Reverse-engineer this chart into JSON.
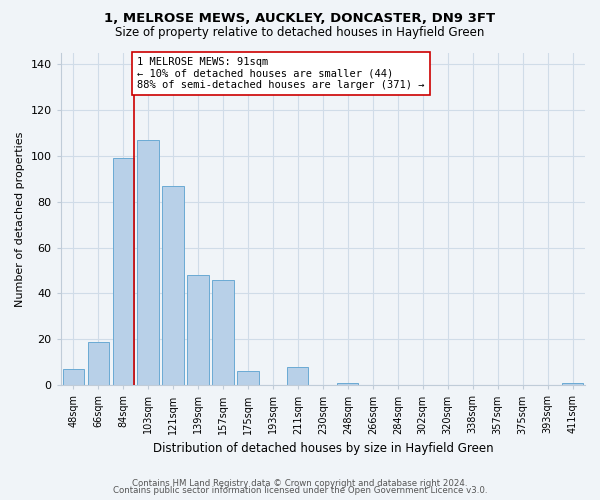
{
  "title": "1, MELROSE MEWS, AUCKLEY, DONCASTER, DN9 3FT",
  "subtitle": "Size of property relative to detached houses in Hayfield Green",
  "xlabel": "Distribution of detached houses by size in Hayfield Green",
  "ylabel": "Number of detached properties",
  "bar_labels": [
    "48sqm",
    "66sqm",
    "84sqm",
    "103sqm",
    "121sqm",
    "139sqm",
    "157sqm",
    "175sqm",
    "193sqm",
    "211sqm",
    "230sqm",
    "248sqm",
    "266sqm",
    "284sqm",
    "302sqm",
    "320sqm",
    "338sqm",
    "357sqm",
    "375sqm",
    "393sqm",
    "411sqm"
  ],
  "bar_values": [
    7,
    19,
    99,
    107,
    87,
    48,
    46,
    6,
    0,
    8,
    0,
    1,
    0,
    0,
    0,
    0,
    0,
    0,
    0,
    0,
    1
  ],
  "bar_color": "#b8d0e8",
  "bar_edge_color": "#6aaad4",
  "vline_color": "#cc0000",
  "annotation_text": "1 MELROSE MEWS: 91sqm\n← 10% of detached houses are smaller (44)\n88% of semi-detached houses are larger (371) →",
  "annotation_box_edge": "#cc0000",
  "ylim": [
    0,
    145
  ],
  "yticks": [
    0,
    20,
    40,
    60,
    80,
    100,
    120,
    140
  ],
  "footer_line1": "Contains HM Land Registry data © Crown copyright and database right 2024.",
  "footer_line2": "Contains public sector information licensed under the Open Government Licence v3.0.",
  "bg_color": "#f0f4f8",
  "grid_color": "#d0dce8"
}
